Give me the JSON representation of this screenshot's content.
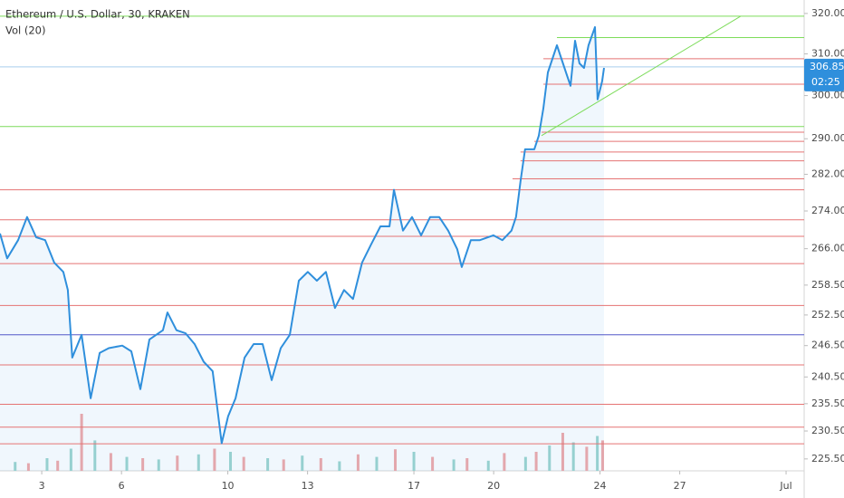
{
  "chart_data": {
    "type": "line",
    "title": "Ethereum / U.S. Dollar, 30, KRAKEN",
    "subtitle": "Vol (20)",
    "log_scale": true,
    "grid": false,
    "color": "#2f8fdc",
    "xlim": [
      1.43,
      31.68
    ],
    "ylim": [
      223.4,
      323.4
    ],
    "xticks": [
      3,
      6,
      10,
      13,
      17,
      20,
      24,
      27,
      {
        "value": 31,
        "label": "Jul"
      }
    ],
    "yticks": [
      {
        "value": 320,
        "label": "320.00"
      },
      {
        "value": 310,
        "label": "310.00"
      },
      {
        "value": 300,
        "label": "300.00"
      },
      {
        "value": 290,
        "label": "290.00"
      },
      {
        "value": 282,
        "label": "282.00"
      },
      {
        "value": 274,
        "label": "274.00"
      },
      {
        "value": 266,
        "label": "266.00"
      },
      {
        "value": 258.5,
        "label": "258.50"
      },
      {
        "value": 252.5,
        "label": "252.50"
      },
      {
        "value": 246.5,
        "label": "246.50"
      },
      {
        "value": 240.5,
        "label": "240.50"
      },
      {
        "value": 235.5,
        "label": "235.50"
      },
      {
        "value": 230.5,
        "label": "230.50"
      },
      {
        "value": 225.5,
        "label": "225.50"
      }
    ],
    "x": [
      1.43,
      1.7,
      2.11,
      2.45,
      2.79,
      3.13,
      3.47,
      3.81,
      3.98,
      4.15,
      4.5,
      4.84,
      5.18,
      5.52,
      6.03,
      6.37,
      6.71,
      7.05,
      7.56,
      7.73,
      8.07,
      8.41,
      8.75,
      9.09,
      9.43,
      9.6,
      9.77,
      10.01,
      10.29,
      10.63,
      10.97,
      11.31,
      11.65,
      11.99,
      12.33,
      12.67,
      13.01,
      13.35,
      13.69,
      14.03,
      14.37,
      14.71,
      15.05,
      15.39,
      15.74,
      16.08,
      16.25,
      16.59,
      16.93,
      17.27,
      17.61,
      17.95,
      18.29,
      18.63,
      18.8,
      19.14,
      19.48,
      19.99,
      20.33,
      20.67,
      20.84,
      21.01,
      21.18,
      21.53,
      21.7,
      21.87,
      22.04,
      22.38,
      22.72,
      22.89,
      23.06,
      23.23,
      23.4,
      23.57,
      23.81,
      23.91,
      24.08,
      24.15
    ],
    "values": [
      269.2,
      264.0,
      267.8,
      272.7,
      268.4,
      267.8,
      263.1,
      261.2,
      257.5,
      244.2,
      248.6,
      236.5,
      245.1,
      246.0,
      246.5,
      245.4,
      238.2,
      247.7,
      249.5,
      253.0,
      249.5,
      248.9,
      246.8,
      243.4,
      241.6,
      234.9,
      228.3,
      233.2,
      236.5,
      244.2,
      246.8,
      246.8,
      239.9,
      246.0,
      248.6,
      259.4,
      261.2,
      259.4,
      261.2,
      253.9,
      257.5,
      255.7,
      263.1,
      266.9,
      270.7,
      270.7,
      278.6,
      269.8,
      272.7,
      268.8,
      272.7,
      272.7,
      269.8,
      265.9,
      262.2,
      267.8,
      267.8,
      268.8,
      267.8,
      269.8,
      272.7,
      280.5,
      287.6,
      287.6,
      290.7,
      297.0,
      305.5,
      312.1,
      305.5,
      302.3,
      313.2,
      307.7,
      306.6,
      312.1,
      316.6,
      299.1,
      303.4,
      306.6
    ],
    "levels": [
      {
        "value": 319.3,
        "color": "#7ddc5a"
      },
      {
        "value": 314.0,
        "color": "#7ddc5a",
        "from": 22.38
      },
      {
        "value": 292.8,
        "color": "#7ddc5a"
      },
      {
        "value": 308.8,
        "color": "#e57373",
        "from": 21.87
      },
      {
        "value": 302.7,
        "color": "#e57373",
        "from": 21.87
      },
      {
        "value": 291.5,
        "color": "#e57373",
        "from": 21.8
      },
      {
        "value": 289.4,
        "color": "#e57373",
        "from": 21.53
      },
      {
        "value": 287.0,
        "color": "#e57373",
        "from": 21.01
      },
      {
        "value": 285.0,
        "color": "#e57373",
        "from": 21.01
      },
      {
        "value": 281.0,
        "color": "#e57373",
        "from": 20.71
      },
      {
        "value": 278.6,
        "color": "#e57373"
      },
      {
        "value": 272.1,
        "color": "#e57373"
      },
      {
        "value": 268.6,
        "color": "#e57373"
      },
      {
        "value": 262.9,
        "color": "#e57373"
      },
      {
        "value": 254.4,
        "color": "#e57373"
      },
      {
        "value": 248.6,
        "color": "#5358c8"
      },
      {
        "value": 242.8,
        "color": "#e57373"
      },
      {
        "value": 235.4,
        "color": "#e57373"
      },
      {
        "value": 231.2,
        "color": "#e57373"
      },
      {
        "value": 228.2,
        "color": "#e57373"
      }
    ],
    "trendline": {
      "x": [
        21.8,
        29.29
      ],
      "values": [
        290.7,
        319.3
      ],
      "color": "#7ddc5a"
    },
    "last_price": {
      "value": 306.85,
      "label": "306.85",
      "countdown": "02:25",
      "color": "#2f8fdc",
      "line_color": "#a9cdee"
    },
    "volume": {
      "ylim": [
        0,
        100
      ],
      "series": [
        {
          "color": "#9fd6cf",
          "x": [
            2.0,
            3.2,
            4.1,
            5.0,
            6.2,
            7.4,
            8.9,
            10.1,
            11.5,
            12.8,
            14.2,
            15.6,
            17.0,
            18.5,
            19.8,
            21.2,
            22.1,
            23.0,
            23.9
          ],
          "values": [
            14,
            20,
            35,
            48,
            22,
            18,
            26,
            30,
            20,
            24,
            15,
            22,
            30,
            18,
            16,
            22,
            40,
            45,
            55
          ]
        },
        {
          "color": "#f2a9a9",
          "x": [
            2.5,
            3.6,
            4.5,
            5.6,
            6.8,
            8.1,
            9.5,
            10.6,
            12.1,
            13.5,
            14.9,
            16.3,
            17.7,
            19.0,
            20.4,
            21.6,
            22.6,
            23.5,
            24.1
          ],
          "values": [
            12,
            16,
            90,
            28,
            20,
            24,
            35,
            22,
            18,
            20,
            26,
            34,
            22,
            20,
            28,
            30,
            60,
            38,
            48
          ]
        }
      ]
    }
  }
}
